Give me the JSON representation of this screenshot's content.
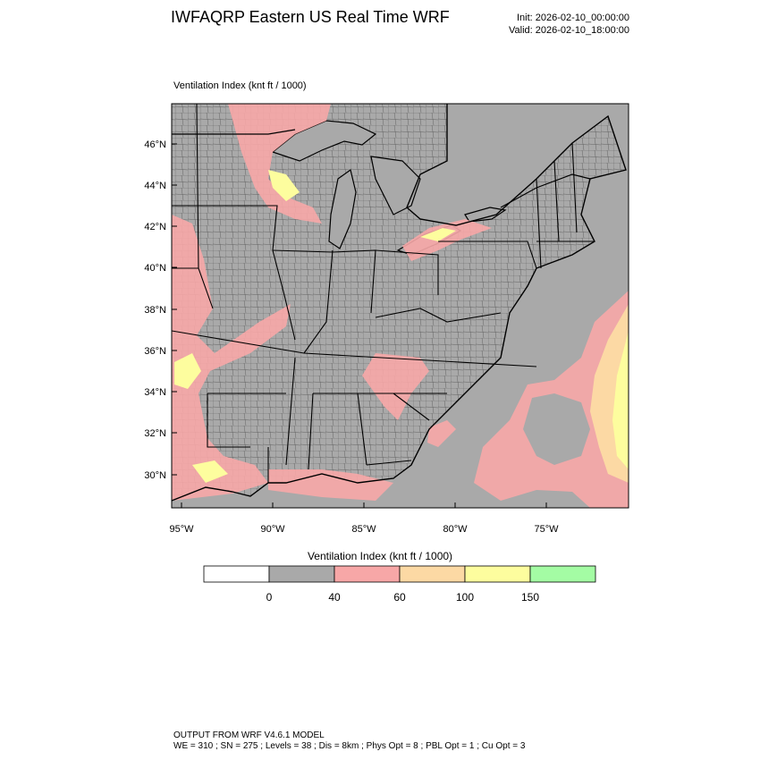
{
  "header": {
    "title": "IWFAQRP Eastern US Real Time WRF",
    "init": "Init: 2026-02-10_00:00:00",
    "valid": "Valid: 2026-02-10_18:00:00"
  },
  "field_label": "Ventilation Index   (knt ft / 1000)",
  "axes": {
    "lat_ticks": [
      "46°N",
      "44°N",
      "42°N",
      "40°N",
      "38°N",
      "36°N",
      "34°N",
      "32°N",
      "30°N"
    ],
    "lon_ticks": [
      "95°W",
      "90°W",
      "85°W",
      "80°W",
      "75°W"
    ]
  },
  "colorbar": {
    "title": "Ventilation Index  (knt ft / 1000)",
    "bins": [
      {
        "color": "#ffffff"
      },
      {
        "color": "#a9a9a9"
      },
      {
        "color": "#f7a7a7"
      },
      {
        "color": "#fcd9a4"
      },
      {
        "color": "#fdfd9e"
      },
      {
        "color": "#a4fca4"
      }
    ],
    "tick_labels": [
      "0",
      "40",
      "60",
      "100",
      "150"
    ]
  },
  "footer": {
    "line1": "OUTPUT FROM WRF V4.6.1 MODEL",
    "line2": "WE = 310 ; SN = 275 ; Levels = 38 ; Dis = 8km ; Phys Opt = 8 ; PBL Opt = 1 ; Cu Opt = 3"
  },
  "map_colors": {
    "land": "#a9a9a9",
    "low": "#f7a7a7",
    "mid": "#fcd9a4",
    "high": "#fdfd9e",
    "border": "#000000"
  }
}
